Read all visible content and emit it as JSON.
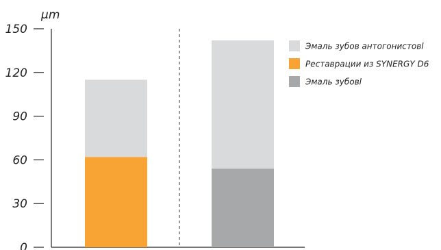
{
  "chart_data": {
    "type": "bar",
    "stacked": true,
    "unit": "µm",
    "ylim": [
      0,
      150
    ],
    "yticks": [
      0,
      30,
      60,
      90,
      120,
      150
    ],
    "grid": false,
    "legend_position": "top-right",
    "divider": "dashed",
    "bars": [
      {
        "segments": [
          {
            "series": 1,
            "value": 62
          },
          {
            "series": 0,
            "value": 53
          }
        ]
      },
      {
        "segments": [
          {
            "series": 2,
            "value": 54
          },
          {
            "series": 0,
            "value": 88
          }
        ]
      }
    ],
    "series": [
      {
        "name": "Эмаль зубов антогонистовl",
        "color": "#d9dadb"
      },
      {
        "name": "Реставрации из SYNERGY D6",
        "color": "#f7a435"
      },
      {
        "name": "Эмаль зубовl",
        "color": "#a7a8a9"
      }
    ]
  }
}
